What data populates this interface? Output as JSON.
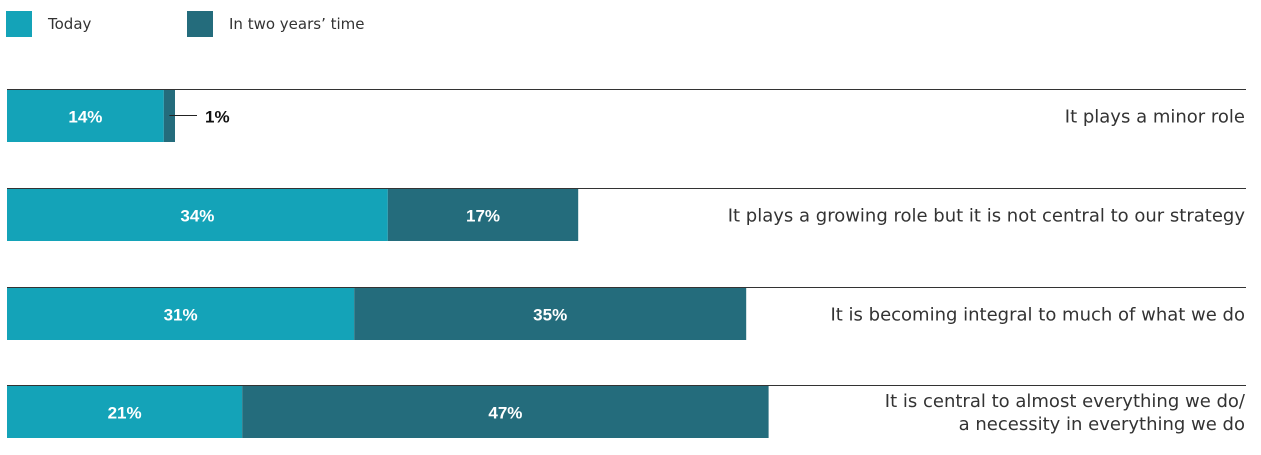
{
  "legend": {
    "today": "Today",
    "future": "In two years’ time"
  },
  "colors": {
    "today": "#14a3b8",
    "future": "#246c7c",
    "rule": "#333333"
  },
  "chart_data": {
    "type": "bar",
    "orientation": "horizontal",
    "stacked": true,
    "legend_position": "top-left",
    "categories": [
      [
        "It plays a minor role"
      ],
      [
        "It plays a growing role but it is not central to our strategy"
      ],
      [
        "It is becoming integral to much of what we do"
      ],
      [
        "It is central to almost everything we do/",
        "a necessity in everything we do"
      ]
    ],
    "series": [
      {
        "name": "Today",
        "values": [
          14,
          34,
          31,
          21
        ]
      },
      {
        "name": "In two years’ time",
        "values": [
          1,
          17,
          35,
          47
        ]
      }
    ],
    "value_labels": [
      [
        "14%",
        "1%"
      ],
      [
        "34%",
        "17%"
      ],
      [
        "31%",
        "35%"
      ],
      [
        "21%",
        "47%"
      ]
    ],
    "unit": "%"
  }
}
